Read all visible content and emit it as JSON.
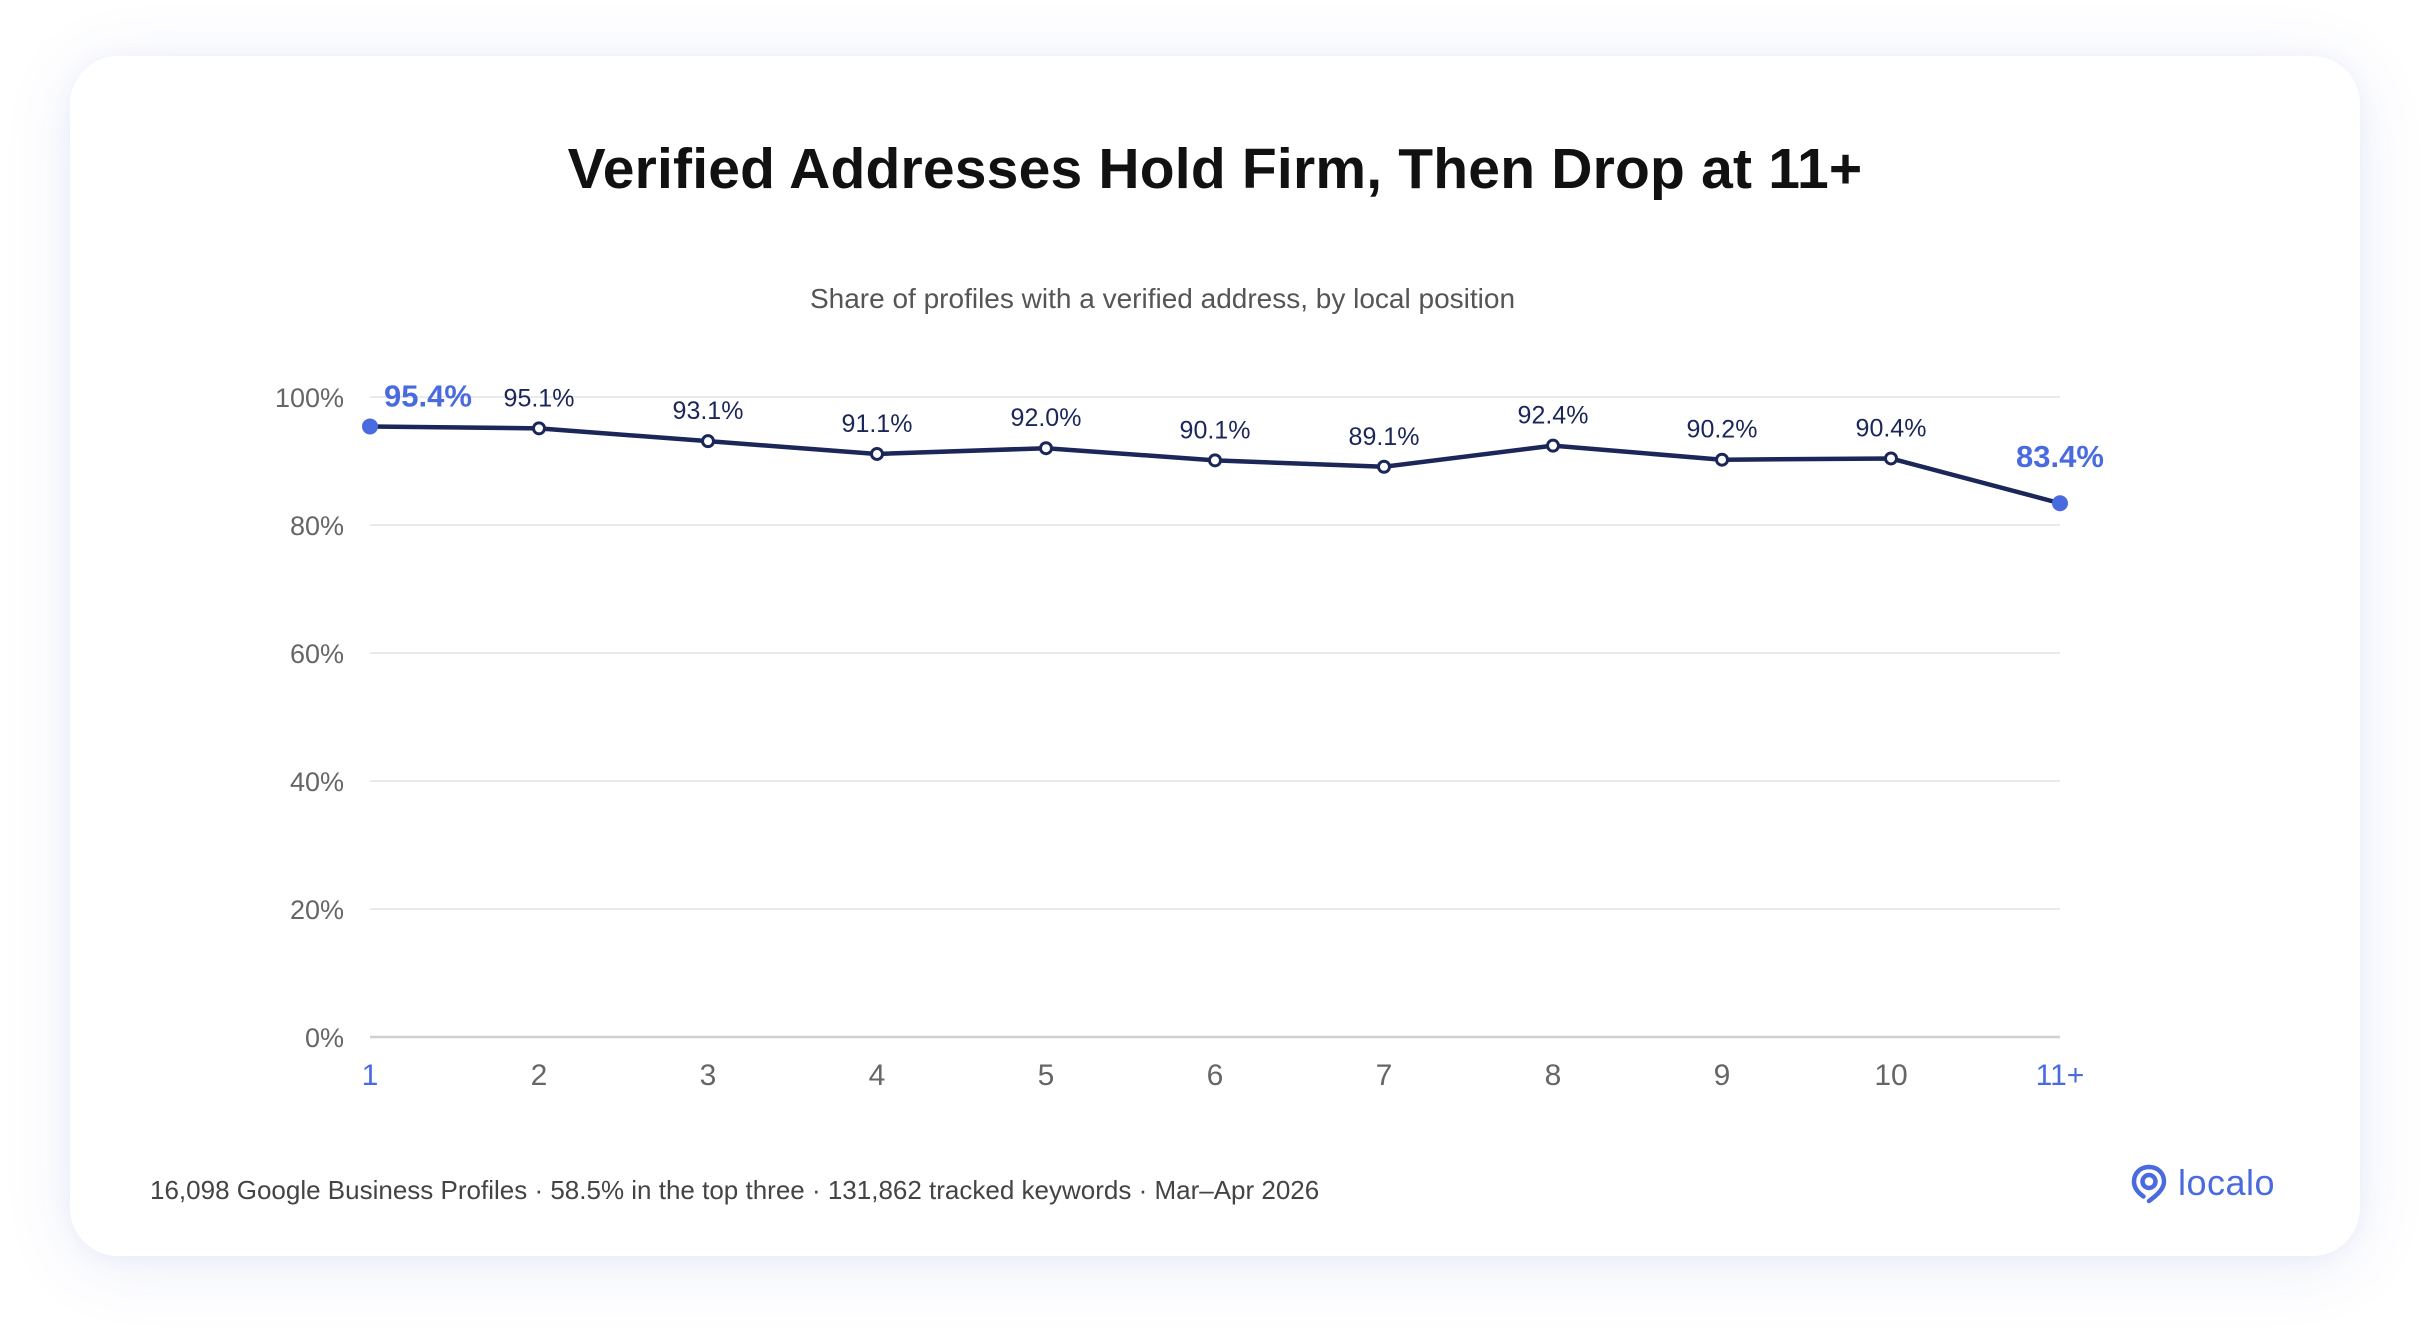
{
  "chart_data": {
    "type": "line",
    "title": "Verified Addresses Hold Firm, Then Drop at 11+",
    "subtitle": "Share of profiles with a verified address, by local position",
    "categories": [
      "1",
      "2",
      "3",
      "4",
      "5",
      "6",
      "7",
      "8",
      "9",
      "10",
      "11+"
    ],
    "series": [
      {
        "values": [
          95.4,
          95.1,
          93.1,
          91.1,
          92.0,
          90.1,
          89.1,
          92.4,
          90.2,
          90.4,
          83.4
        ]
      }
    ],
    "data_labels": [
      "95.4%",
      "95.1%",
      "93.1%",
      "91.1%",
      "92.0%",
      "90.1%",
      "89.1%",
      "92.4%",
      "90.2%",
      "90.4%",
      "83.4%"
    ],
    "highlighted_categories": [
      "1",
      "11+"
    ],
    "y_ticks": [
      "0%",
      "20%",
      "40%",
      "60%",
      "80%",
      "100%"
    ],
    "ylim": [
      0,
      100
    ],
    "grid": true,
    "colors": {
      "line": "#1b2659",
      "highlight": "#4a6be0",
      "grid": "#e3e3e3",
      "axis_text": "#666666",
      "label_text": "#1b2659"
    }
  },
  "footnote": "16,098 Google Business Profiles · 58.5% in the top three · 131,862 tracked keywords · Mar–Apr 2026",
  "brand": {
    "name": "localo",
    "icon": "location-pin-icon"
  }
}
